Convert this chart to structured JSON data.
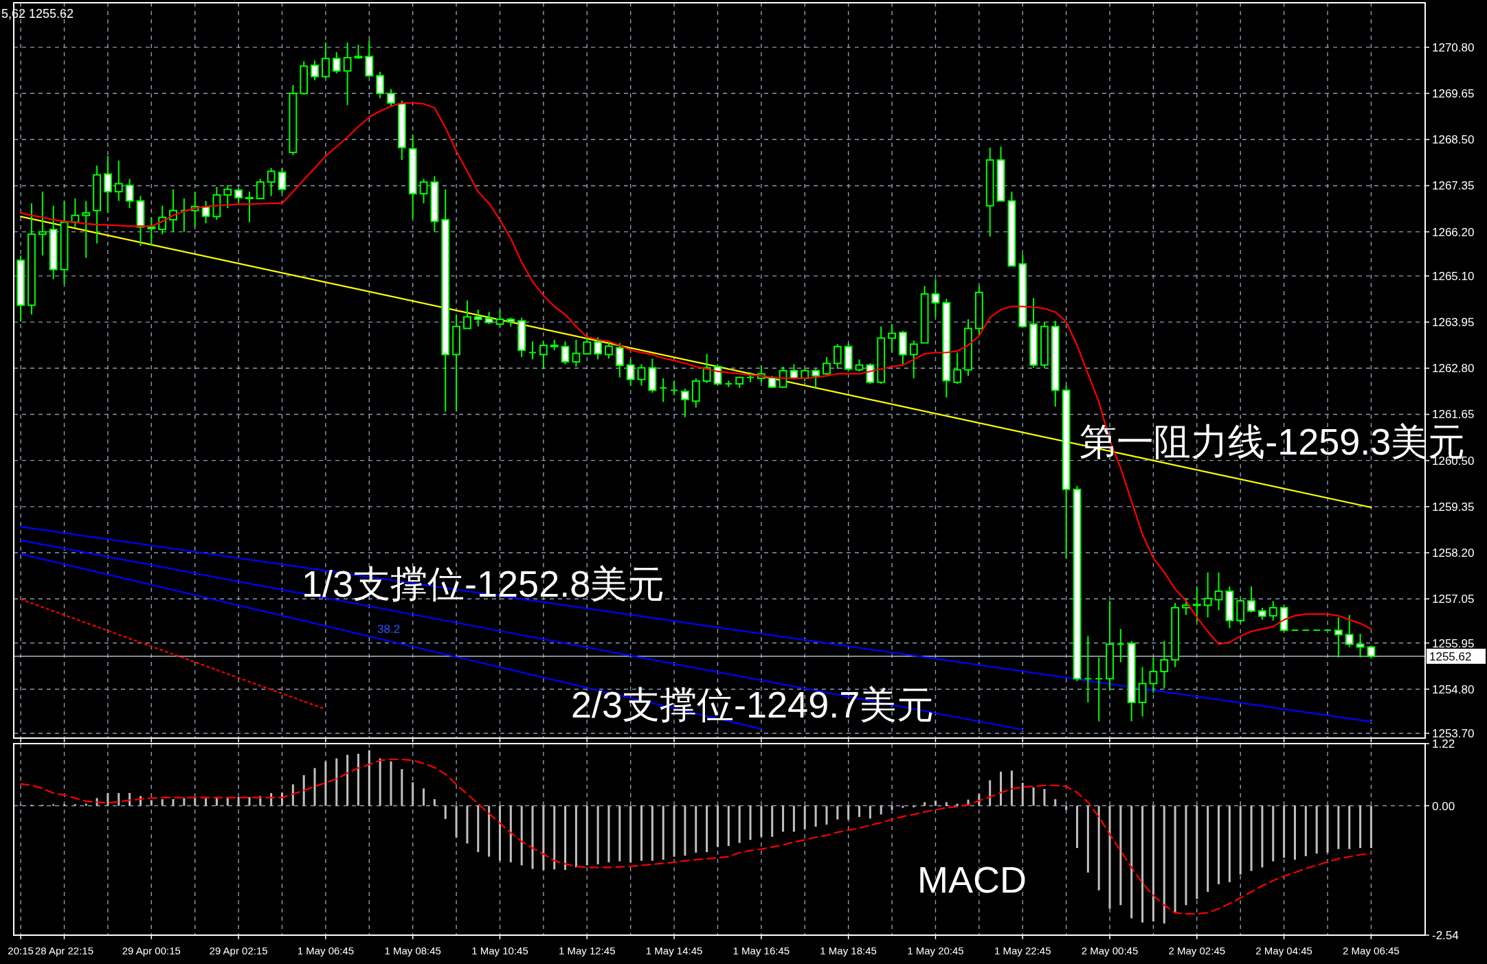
{
  "chart_data": [
    {
      "type": "candlestick",
      "color": "#00ff00",
      "grid": true,
      "tick_labels": "y",
      "categories": [
        "20:15",
        null,
        null,
        null,
        "28 Apr 22:15",
        null,
        null,
        null,
        null,
        null,
        null,
        null,
        "29 Apr 00:15",
        null,
        null,
        null,
        null,
        null,
        null,
        null,
        "29 Apr 02:15",
        null,
        null,
        null,
        null,
        null,
        null,
        null,
        "1 May 06:45",
        null,
        null,
        null,
        null,
        null,
        null,
        null,
        "1 May 08:45",
        null,
        null,
        null,
        null,
        null,
        null,
        null,
        "1 May 10:45",
        null,
        null,
        null,
        null,
        null,
        null,
        null,
        "1 May 12:45",
        null,
        null,
        null,
        null,
        null,
        null,
        null,
        "1 May 14:45",
        null,
        null,
        null,
        null,
        null,
        null,
        null,
        "1 May 16:45",
        null,
        null,
        null,
        null,
        null,
        null,
        null,
        "1 May 18:45",
        null,
        null,
        null,
        null,
        null,
        null,
        null,
        "1 May 20:45",
        null,
        null,
        null,
        null,
        null,
        null,
        null,
        "1 May 22:45",
        null,
        null,
        null,
        null,
        null,
        null,
        null,
        "2 May 00:45",
        null,
        null,
        null,
        null,
        null,
        null,
        null,
        "2 May 02:45",
        null,
        null,
        null,
        null,
        null,
        null,
        null,
        "2 May 04:45",
        null,
        null,
        null,
        null,
        null,
        null,
        null,
        "2 May 06:45"
      ],
      "ylim": [
        1253.58,
        1271.91
      ],
      "yticks": [
        {
          "value": 1270.8,
          "label": "1270.80"
        },
        1269.65,
        {
          "value": 1268.5,
          "label": "1268.50"
        },
        1267.35,
        {
          "value": 1266.2,
          "label": "1266.20"
        },
        {
          "value": 1265.1,
          "label": "1265.10"
        },
        1263.95,
        {
          "value": 1262.8,
          "label": "1262.80"
        },
        1261.65,
        {
          "value": 1260.5,
          "label": "1260.50"
        },
        1259.35,
        {
          "value": 1258.2,
          "label": "1258.20"
        },
        1257.05,
        1255.95,
        {
          "value": 1254.8,
          "label": "1254.80"
        },
        {
          "value": 1253.7,
          "label": "1253.70"
        }
      ],
      "ohlc": [
        [
          1265.49,
          1265.61,
          1263.96,
          1264.37
        ],
        [
          1264.37,
          1266.91,
          1264.14,
          1266.14
        ],
        [
          1266.14,
          1267.2,
          1265.61,
          1266.2
        ],
        [
          1266.26,
          1266.85,
          1265.02,
          1265.26
        ],
        [
          1265.26,
          1266.97,
          1264.9,
          1266.44
        ],
        [
          1266.44,
          1267.03,
          1266.32,
          1266.61
        ],
        [
          1266.61,
          1266.97,
          1265.55,
          1266.67
        ],
        [
          1266.73,
          1267.85,
          1265.91,
          1267.62
        ],
        [
          1267.64,
          1268.09,
          1266.67,
          1267.2
        ],
        [
          1267.2,
          1267.97,
          1266.97,
          1267.4
        ],
        [
          1267.36,
          1267.52,
          1266.79,
          1266.97
        ],
        [
          1266.97,
          1267.09,
          1265.85,
          1266.32
        ],
        [
          1266.32,
          1266.56,
          1265.85,
          1266.28
        ],
        [
          1266.26,
          1266.85,
          1266.14,
          1266.56
        ],
        [
          1266.5,
          1267.26,
          1266.2,
          1266.73
        ],
        [
          1266.73,
          1267.03,
          1266.2,
          1266.73
        ],
        [
          1266.73,
          1267.2,
          1266.32,
          1266.83
        ],
        [
          1266.82,
          1266.97,
          1266.41,
          1266.59
        ],
        [
          1266.58,
          1267.32,
          1266.5,
          1267.12
        ],
        [
          1267.12,
          1267.36,
          1266.79,
          1267.26
        ],
        [
          1267.24,
          1267.29,
          1266.93,
          1267.05
        ],
        [
          1267.05,
          1267.2,
          1266.44,
          1267.03
        ],
        [
          1267.03,
          1267.52,
          1267.03,
          1267.44
        ],
        [
          1267.44,
          1267.79,
          1267.09,
          1267.71
        ],
        [
          1267.68,
          1267.79,
          1267.17,
          1267.26
        ],
        [
          1268.18,
          1269.86,
          1268.11,
          1269.65
        ],
        [
          1269.65,
          1270.45,
          1269.62,
          1270.33
        ],
        [
          1270.35,
          1270.47,
          1269.98,
          1270.07
        ],
        [
          1270.07,
          1270.92,
          1270.03,
          1270.52
        ],
        [
          1270.52,
          1270.68,
          1270.15,
          1270.21
        ],
        [
          1270.21,
          1270.92,
          1269.36,
          1270.54
        ],
        [
          1270.54,
          1270.86,
          1270.51,
          1270.57
        ],
        [
          1270.57,
          1270.98,
          1270.07,
          1270.09
        ],
        [
          1270.09,
          1270.19,
          1269.53,
          1269.65
        ],
        [
          1269.65,
          1269.76,
          1269.33,
          1269.41
        ],
        [
          1269.39,
          1269.47,
          1267.99,
          1268.3
        ],
        [
          1268.27,
          1268.62,
          1266.53,
          1267.15
        ],
        [
          1267.15,
          1267.52,
          1266.91,
          1267.44
        ],
        [
          1267.44,
          1267.59,
          1266.2,
          1266.46
        ],
        [
          1266.5,
          1267.26,
          1261.72,
          1263.14
        ],
        [
          1263.14,
          1264.14,
          1261.72,
          1263.84
        ],
        [
          1263.79,
          1264.49,
          1263.79,
          1264.08
        ],
        [
          1264.08,
          1264.26,
          1263.84,
          1264.02
        ],
        [
          1264.04,
          1264.2,
          1263.9,
          1263.94
        ],
        [
          1263.9,
          1264.26,
          1263.84,
          1264.02
        ],
        [
          1264.02,
          1264.06,
          1263.84,
          1263.96
        ],
        [
          1263.98,
          1264.06,
          1263.08,
          1263.25
        ],
        [
          1263.19,
          1263.47,
          1263.02,
          1263.19
        ],
        [
          1263.14,
          1263.47,
          1262.78,
          1263.37
        ],
        [
          1263.37,
          1263.51,
          1263.25,
          1263.34
        ],
        [
          1263.34,
          1263.47,
          1262.9,
          1262.96
        ],
        [
          1262.96,
          1263.51,
          1262.84,
          1263.17
        ],
        [
          1263.16,
          1263.57,
          1263.14,
          1263.45
        ],
        [
          1263.45,
          1263.57,
          1263.02,
          1263.16
        ],
        [
          1263.14,
          1263.47,
          1263.04,
          1263.35
        ],
        [
          1263.31,
          1263.43,
          1262.57,
          1262.87
        ],
        [
          1262.88,
          1263.02,
          1262.37,
          1262.52
        ],
        [
          1262.52,
          1262.9,
          1262.37,
          1262.81
        ],
        [
          1262.81,
          1263.04,
          1262.19,
          1262.25
        ],
        [
          1262.31,
          1262.55,
          1261.96,
          1262.31
        ],
        [
          1262.25,
          1262.49,
          1262.13,
          1262.25
        ],
        [
          1262.22,
          1262.29,
          1261.58,
          1262.02
        ],
        [
          1261.98,
          1262.55,
          1261.82,
          1262.48
        ],
        [
          1262.48,
          1263.16,
          1262.43,
          1262.81
        ],
        [
          1262.84,
          1262.9,
          1262.37,
          1262.41
        ],
        [
          1262.41,
          1262.49,
          1262.33,
          1262.41
        ],
        [
          1262.41,
          1262.59,
          1262.31,
          1262.57
        ],
        [
          1262.57,
          1262.7,
          1262.45,
          1262.57
        ],
        [
          1262.55,
          1262.87,
          1262.45,
          1262.66
        ],
        [
          1262.57,
          1262.61,
          1262.31,
          1262.33
        ],
        [
          1262.33,
          1262.84,
          1262.31,
          1262.74
        ],
        [
          1262.74,
          1262.9,
          1262.52,
          1262.55
        ],
        [
          1262.55,
          1262.78,
          1262.48,
          1262.74
        ],
        [
          1262.74,
          1262.78,
          1262.31,
          1262.61
        ],
        [
          1262.66,
          1263.08,
          1262.64,
          1262.92
        ],
        [
          1262.92,
          1263.4,
          1262.78,
          1263.34
        ],
        [
          1263.34,
          1263.42,
          1262.72,
          1262.78
        ],
        [
          1262.76,
          1263.02,
          1262.72,
          1262.88
        ],
        [
          1262.88,
          1262.92,
          1262.41,
          1262.45
        ],
        [
          1262.45,
          1263.84,
          1262.41,
          1263.55
        ],
        [
          1263.55,
          1263.9,
          1263.19,
          1263.67
        ],
        [
          1263.69,
          1263.73,
          1262.9,
          1263.14
        ],
        [
          1263.14,
          1263.49,
          1262.55,
          1263.4
        ],
        [
          1263.43,
          1264.85,
          1263.43,
          1264.65
        ],
        [
          1264.65,
          1265.02,
          1264.08,
          1264.43
        ],
        [
          1264.43,
          1264.53,
          1262.07,
          1262.49
        ],
        [
          1262.45,
          1263.19,
          1262.41,
          1262.76
        ],
        [
          1262.76,
          1264.02,
          1262.61,
          1263.79
        ],
        [
          1263.79,
          1264.85,
          1263.61,
          1264.69
        ],
        [
          1266.85,
          1268.3,
          1266.08,
          1267.99
        ],
        [
          1267.99,
          1268.32,
          1266.97,
          1266.97
        ],
        [
          1266.97,
          1267.2,
          1265.35,
          1265.35
        ],
        [
          1265.4,
          1265.64,
          1263.84,
          1263.84
        ],
        [
          1263.9,
          1264.55,
          1262.81,
          1262.88
        ],
        [
          1262.88,
          1263.96,
          1262.81,
          1263.84
        ],
        [
          1263.84,
          1263.98,
          1261.84,
          1262.25
        ],
        [
          1262.25,
          1262.37,
          1258.07,
          1259.78
        ],
        [
          1259.78,
          1259.86,
          1255.0,
          1255.06
        ],
        [
          1255.06,
          1256.12,
          1254.47,
          1255.06
        ],
        [
          1255.06,
          1255.59,
          1254.0,
          1255.06
        ],
        [
          1255.06,
          1257.0,
          1254.76,
          1255.92
        ],
        [
          1255.92,
          1256.3,
          1255.47,
          1255.92
        ],
        [
          1255.94,
          1256.0,
          1254.0,
          1254.47
        ],
        [
          1254.47,
          1255.35,
          1254.12,
          1254.94
        ],
        [
          1254.94,
          1255.59,
          1254.71,
          1255.24
        ],
        [
          1255.24,
          1256.0,
          1254.82,
          1255.53
        ],
        [
          1255.53,
          1256.95,
          1255.35,
          1256.83
        ],
        [
          1256.83,
          1257.06,
          1256.65,
          1256.89
        ],
        [
          1256.89,
          1257.36,
          1256.47,
          1256.91
        ],
        [
          1256.89,
          1257.71,
          1256.59,
          1257.06
        ],
        [
          1257.03,
          1257.71,
          1256.77,
          1257.24
        ],
        [
          1257.24,
          1257.36,
          1256.32,
          1256.51
        ],
        [
          1256.51,
          1257.06,
          1256.44,
          1257.0
        ],
        [
          1257.0,
          1257.36,
          1256.71,
          1256.75
        ],
        [
          1256.75,
          1256.83,
          1256.53,
          1256.62
        ],
        [
          1256.63,
          1257.0,
          1256.51,
          1256.83
        ],
        [
          1256.83,
          1256.86,
          1256.23,
          1256.27
        ],
        [
          1256.27,
          1256.27,
          1256.27,
          1256.27
        ],
        [
          1256.27,
          1256.27,
          1256.27,
          1256.27
        ],
        [
          1256.27,
          1256.27,
          1256.27,
          1256.27
        ],
        [
          1256.27,
          1256.27,
          1256.27,
          1256.27
        ],
        [
          1256.27,
          1256.59,
          1255.59,
          1256.16
        ],
        [
          1256.16,
          1256.65,
          1255.85,
          1255.92
        ],
        [
          1255.92,
          1256.18,
          1255.59,
          1255.85
        ],
        [
          1255.85,
          1255.88,
          1255.57,
          1255.62
        ]
      ],
      "series": [
        {
          "type": "line",
          "color": "#ff0000",
          "values": [
            1266.67,
            1266.61,
            1266.56,
            1266.5,
            1266.46,
            1266.44,
            1266.4,
            1266.38,
            1266.37,
            1266.36,
            1266.34,
            1266.34,
            1266.34,
            1266.46,
            1266.61,
            1266.71,
            1266.79,
            1266.83,
            1266.85,
            1266.87,
            1266.89,
            1266.89,
            1266.9,
            1266.91,
            1266.91,
            1267.2,
            1267.5,
            1267.79,
            1268.09,
            1268.32,
            1268.56,
            1268.82,
            1269.06,
            1269.21,
            1269.33,
            1269.41,
            1269.41,
            1269.39,
            1269.29,
            1268.8,
            1268.21,
            1267.71,
            1267.2,
            1266.91,
            1266.5,
            1266.03,
            1265.44,
            1264.96,
            1264.61,
            1264.34,
            1264.14,
            1263.84,
            1263.58,
            1263.51,
            1263.47,
            1263.37,
            1263.25,
            1263.19,
            1263.14,
            1263.05,
            1262.99,
            1262.92,
            1262.84,
            1262.78,
            1262.72,
            1262.69,
            1262.66,
            1262.63,
            1262.61,
            1262.57,
            1262.55,
            1262.55,
            1262.55,
            1262.57,
            1262.61,
            1262.66,
            1262.66,
            1262.66,
            1262.72,
            1262.78,
            1262.84,
            1262.88,
            1263.02,
            1263.16,
            1263.19,
            1263.19,
            1263.23,
            1263.37,
            1263.61,
            1264.06,
            1264.26,
            1264.34,
            1264.34,
            1264.32,
            1264.29,
            1264.2,
            1263.96,
            1263.37,
            1262.66,
            1261.96,
            1261.01,
            1260.31,
            1259.48,
            1258.66,
            1258.07,
            1257.71,
            1257.3,
            1257.0,
            1256.59,
            1256.24,
            1255.92,
            1255.97,
            1256.12,
            1256.24,
            1256.3,
            1256.36,
            1256.53,
            1256.63,
            1256.67,
            1256.67,
            1256.67,
            1256.63,
            1256.53,
            1256.44,
            1256.3
          ]
        },
        {
          "type": "line",
          "color": "#ffff00",
          "x": [
            "20:15",
            "2 May 06:45"
          ],
          "values": [
            1266.58,
            1259.33
          ]
        },
        {
          "type": "line",
          "color": "#0000ff",
          "x": [
            "20:15",
            "2 May 06:45"
          ],
          "values": [
            1258.85,
            1253.99
          ]
        },
        {
          "type": "line",
          "color": "#0000ff",
          "x": [
            "20:15",
            "1 May 22:45"
          ],
          "values": [
            1258.51,
            1253.79
          ]
        },
        {
          "type": "line",
          "color": "#0000ff",
          "x": [
            "20:15",
            "1 May 16:45"
          ],
          "values": [
            1258.17,
            1253.81
          ]
        },
        {
          "type": "line",
          "color": "#ff0000",
          "line_style": "dotted",
          "x": [
            "20:15",
            "1 May 06:45"
          ],
          "values": [
            1257.04,
            1254.3
          ]
        }
      ],
      "ref_lines": [
        {
          "axis": "y",
          "value": 1255.62,
          "label": "1255.62",
          "color": "#b0b8c8"
        }
      ],
      "annotations": [
        "5,62 1255.62",
        {
          "text": "第一阻力线-1259.3美元",
          "x": "2 May 06:45",
          "y": 1259.3
        },
        "1/3支撑位-1252.8美元",
        "2/3支撑位-1249.7美元",
        "38.2"
      ]
    },
    {
      "type": "bar",
      "grid": true,
      "categories": [
        "20:15",
        null,
        null,
        null,
        "28 Apr 22:15",
        null,
        null,
        null,
        null,
        null,
        null,
        null,
        "29 Apr 00:15",
        null,
        null,
        null,
        null,
        null,
        null,
        null,
        "29 Apr 02:15",
        null,
        null,
        null,
        null,
        null,
        null,
        null,
        "1 May 06:45",
        null,
        null,
        null,
        null,
        null,
        null,
        null,
        "1 May 08:45",
        null,
        null,
        null,
        null,
        null,
        null,
        null,
        "1 May 10:45",
        null,
        null,
        null,
        null,
        null,
        null,
        null,
        "1 May 12:45",
        null,
        null,
        null,
        null,
        null,
        null,
        null,
        "1 May 14:45",
        null,
        null,
        null,
        null,
        null,
        null,
        null,
        "1 May 16:45",
        null,
        null,
        null,
        null,
        null,
        null,
        null,
        "1 May 18:45",
        null,
        null,
        null,
        null,
        null,
        null,
        null,
        "1 May 20:45",
        null,
        null,
        null,
        null,
        null,
        null,
        null,
        "1 May 22:45",
        null,
        null,
        null,
        null,
        null,
        null,
        null,
        "2 May 00:45",
        null,
        null,
        null,
        null,
        null,
        null,
        null,
        "2 May 02:45",
        null,
        null,
        null,
        null,
        null,
        null,
        null,
        "2 May 04:45",
        null,
        null,
        null,
        null,
        null,
        null,
        null,
        "2 May 06:45"
      ],
      "ylim": [
        -2.54,
        1.22
      ],
      "yticks": [
        1.22,
        {
          "value": 0,
          "label": "0.00"
        },
        -2.54
      ],
      "series": [
        {
          "type": "bar",
          "color": "#c0c0c0",
          "values": [
            0.02,
            0.02,
            0.02,
            0.03,
            0.03,
            0.03,
            0.04,
            0.15,
            0.25,
            0.25,
            0.25,
            0.19,
            0.11,
            0.13,
            0.13,
            0.15,
            0.17,
            0.15,
            0.17,
            0.17,
            0.17,
            0.17,
            0.19,
            0.25,
            0.26,
            0.42,
            0.6,
            0.74,
            0.87,
            0.93,
            1.0,
            1.02,
            1.09,
            0.93,
            0.87,
            0.72,
            0.46,
            0.34,
            0.13,
            -0.26,
            -0.62,
            -0.74,
            -0.91,
            -1.0,
            -1.08,
            -1.11,
            -1.17,
            -1.24,
            -1.26,
            -1.25,
            -1.26,
            -1.21,
            -1.17,
            -1.15,
            -1.11,
            -1.09,
            -1.11,
            -1.08,
            -1.08,
            -1.06,
            -1.0,
            -0.98,
            -0.92,
            -0.91,
            -0.81,
            -0.79,
            -0.73,
            -0.67,
            -0.61,
            -0.61,
            -0.51,
            -0.51,
            -0.46,
            -0.41,
            -0.37,
            -0.27,
            -0.27,
            -0.22,
            -0.25,
            -0.17,
            -0.08,
            -0.04,
            -0.03,
            0.07,
            0.1,
            0.07,
            0.04,
            0.12,
            0.23,
            0.5,
            0.67,
            0.69,
            0.45,
            0.36,
            0.33,
            0.13,
            -0.08,
            -0.83,
            -1.31,
            -1.66,
            -2.02,
            -1.95,
            -2.21,
            -2.29,
            -2.27,
            -2.31,
            -2.1,
            -1.95,
            -1.83,
            -1.69,
            -1.54,
            -1.5,
            -1.35,
            -1.28,
            -1.21,
            -1.09,
            -1.02,
            -1.06,
            -0.99,
            -0.94,
            -0.92,
            -0.85,
            -0.85,
            -0.83,
            -0.83
          ]
        },
        {
          "type": "line",
          "color": "#ff0000",
          "line_style": "dashed",
          "values": [
            0.43,
            0.4,
            0.34,
            0.25,
            0.21,
            0.15,
            0.09,
            0.07,
            0.06,
            0.08,
            0.11,
            0.13,
            0.15,
            0.16,
            0.16,
            0.16,
            0.16,
            0.16,
            0.16,
            0.16,
            0.16,
            0.16,
            0.16,
            0.16,
            0.16,
            0.23,
            0.3,
            0.38,
            0.45,
            0.53,
            0.64,
            0.74,
            0.81,
            0.89,
            0.91,
            0.91,
            0.89,
            0.83,
            0.75,
            0.62,
            0.42,
            0.23,
            0.04,
            -0.15,
            -0.34,
            -0.53,
            -0.7,
            -0.83,
            -0.95,
            -1.08,
            -1.14,
            -1.19,
            -1.21,
            -1.21,
            -1.21,
            -1.2,
            -1.19,
            -1.17,
            -1.15,
            -1.13,
            -1.11,
            -1.08,
            -1.06,
            -1.04,
            -1.02,
            -1.0,
            -0.92,
            -0.88,
            -0.85,
            -0.81,
            -0.77,
            -0.71,
            -0.67,
            -0.62,
            -0.58,
            -0.52,
            -0.48,
            -0.44,
            -0.38,
            -0.33,
            -0.27,
            -0.21,
            -0.17,
            -0.12,
            -0.08,
            -0.04,
            -0.02,
            0.02,
            0.1,
            0.17,
            0.26,
            0.33,
            0.37,
            0.38,
            0.4,
            0.4,
            0.38,
            0.26,
            0.07,
            -0.22,
            -0.56,
            -0.89,
            -1.21,
            -1.52,
            -1.76,
            -1.95,
            -2.1,
            -2.12,
            -2.12,
            -2.1,
            -2.02,
            -1.92,
            -1.81,
            -1.69,
            -1.57,
            -1.47,
            -1.38,
            -1.31,
            -1.23,
            -1.17,
            -1.1,
            -1.04,
            -1.0,
            -0.96,
            -0.94
          ]
        }
      ],
      "annotations": [
        "MACD"
      ]
    }
  ]
}
